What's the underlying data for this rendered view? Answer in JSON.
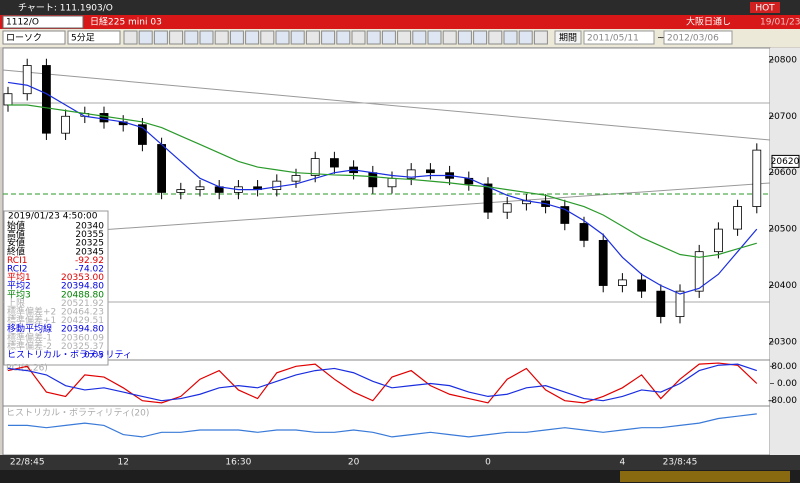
{
  "window": {
    "title": "チャート: 111.1903/O",
    "hot": "HOT"
  },
  "symbol_bar": {
    "code": "1112/O",
    "name": "日経225 mini 03",
    "exchange": "大阪日通し",
    "date": "19/01/23"
  },
  "toolbar": {
    "chart_type": "ローソク",
    "interval": "5分足",
    "period_label": "期間",
    "start": "2011/05/11",
    "end": "2012/03/06"
  },
  "info_panel": {
    "datetime": "2019/01/23 4:50:00",
    "rows": [
      {
        "label": "始値",
        "value": "20340",
        "color": "#000000"
      },
      {
        "label": "高値",
        "value": "20355",
        "color": "#000000"
      },
      {
        "label": "安値",
        "value": "20325",
        "color": "#000000"
      },
      {
        "label": "終値",
        "value": "20345",
        "color": "#000000"
      },
      {
        "label": "RCI1",
        "value": "-92.92",
        "color": "#e00000"
      },
      {
        "label": "RCI2",
        "value": "-74.02",
        "color": "#0000e0"
      },
      {
        "label": "平均1",
        "value": "20353.00",
        "color": "#e00000"
      },
      {
        "label": "平均2",
        "value": "20394.80",
        "color": "#0000e0"
      },
      {
        "label": "平均3",
        "value": "20488.80",
        "color": "#008000"
      },
      {
        "label": "上限",
        "value": "20521.92",
        "color": "#b0b0b0"
      },
      {
        "label": "標準偏差+2",
        "value": "20464.23",
        "color": "#b0b0b0"
      },
      {
        "label": "標準偏差+1",
        "value": "20429.51",
        "color": "#b0b0b0"
      },
      {
        "label": "移動平均線",
        "value": "20394.80",
        "color": "#0000e0"
      },
      {
        "label": "標準偏差-1",
        "value": "20360.09",
        "color": "#b0b0b0"
      },
      {
        "label": "標準偏差-2",
        "value": "20325.37",
        "color": "#b0b0b0"
      },
      {
        "label": "ヒストリカル・ボラティリティ",
        "value": "0.05",
        "color": "#0000e0"
      }
    ]
  },
  "chart_data": [
    {
      "type": "candlestick",
      "last_price": 20620,
      "categories": [
        null,
        "22/8:45",
        null,
        null,
        null,
        null,
        "12",
        null,
        null,
        null,
        null,
        null,
        "16:30",
        null,
        null,
        null,
        null,
        null,
        "20",
        null,
        null,
        null,
        null,
        null,
        null,
        "0",
        null,
        null,
        null,
        null,
        null,
        null,
        "4",
        null,
        null,
        "23/8:45",
        null,
        null,
        null,
        null
      ],
      "open": [
        20720,
        20740,
        20790,
        20670,
        20700,
        20705,
        20690,
        20685,
        20650,
        20565,
        20570,
        20575,
        20565,
        20575,
        20570,
        20585,
        20595,
        20625,
        20610,
        20600,
        20575,
        20590,
        20605,
        20600,
        20590,
        20580,
        20530,
        20545,
        20550,
        20540,
        20510,
        20480,
        20400,
        20410,
        20390,
        20345,
        20390,
        20460,
        20500,
        20540
      ],
      "high": [
        20752,
        20802,
        20802,
        20712,
        20717,
        20717,
        20702,
        20697,
        20662,
        20582,
        20587,
        20587,
        20587,
        20587,
        20597,
        20607,
        20637,
        20637,
        20622,
        20612,
        20602,
        20617,
        20617,
        20612,
        20602,
        20592,
        20557,
        20562,
        20562,
        20552,
        20522,
        20492,
        20422,
        20422,
        20402,
        20402,
        20472,
        20512,
        20552,
        20652
      ],
      "low": [
        20708,
        20728,
        20658,
        20658,
        20688,
        20678,
        20673,
        20638,
        20553,
        20553,
        20558,
        20553,
        20553,
        20558,
        20558,
        20573,
        20583,
        20598,
        20588,
        20563,
        20563,
        20578,
        20588,
        20578,
        20568,
        20518,
        20518,
        20533,
        20528,
        20498,
        20468,
        20388,
        20388,
        20378,
        20333,
        20333,
        20378,
        20448,
        20488,
        20528
      ],
      "close": [
        20740,
        20790,
        20670,
        20700,
        20705,
        20690,
        20685,
        20650,
        20565,
        20570,
        20575,
        20565,
        20575,
        20570,
        20585,
        20595,
        20625,
        20610,
        20600,
        20575,
        20590,
        20605,
        20600,
        20590,
        20580,
        20530,
        20545,
        20550,
        20540,
        20510,
        20480,
        20400,
        20410,
        20390,
        20345,
        20390,
        20460,
        20500,
        20540,
        20640
      ],
      "series": [
        {
          "name": "平均2",
          "color": "#1a2ee0",
          "values": [
            20760,
            20755,
            20740,
            20720,
            20700,
            20695,
            20690,
            20680,
            20650,
            20620,
            20590,
            20575,
            20570,
            20570,
            20575,
            20580,
            20590,
            20600,
            20605,
            20600,
            20595,
            20592,
            20595,
            20595,
            20590,
            20575,
            20560,
            20550,
            20545,
            20535,
            20515,
            20490,
            20450,
            20420,
            20400,
            20385,
            20395,
            20420,
            20460,
            20500
          ]
        },
        {
          "name": "平均3",
          "color": "#2a9a2a",
          "values": [
            20720,
            20720,
            20715,
            20710,
            20705,
            20700,
            20695,
            20690,
            20680,
            20665,
            20650,
            20635,
            20620,
            20610,
            20605,
            20600,
            20598,
            20596,
            20595,
            20593,
            20590,
            20588,
            20585,
            20582,
            20578,
            20575,
            20570,
            20565,
            20560,
            20550,
            20540,
            20525,
            20505,
            20485,
            20470,
            20455,
            20450,
            20455,
            20465,
            20475
          ]
        }
      ],
      "ylim": [
        20268,
        20821
      ],
      "yticks": [
        20300,
        20400,
        20500,
        20600,
        20700,
        20800
      ]
    },
    {
      "type": "line",
      "title": "RCI(9,26)",
      "series": [
        {
          "name": "RCI1",
          "color": "#e00000",
          "values": [
            60,
            80,
            -40,
            -60,
            40,
            30,
            -20,
            -80,
            -90,
            -60,
            20,
            60,
            -30,
            -70,
            50,
            80,
            90,
            20,
            -40,
            -80,
            30,
            60,
            -10,
            -50,
            -70,
            -90,
            20,
            70,
            -30,
            -80,
            -90,
            -60,
            -20,
            40,
            -70,
            20,
            90,
            95,
            85,
            0
          ]
        },
        {
          "name": "RCI2",
          "color": "#1a2ee0",
          "values": [
            70,
            60,
            40,
            -10,
            -30,
            -20,
            -40,
            -60,
            -80,
            -70,
            -50,
            -20,
            -10,
            -20,
            10,
            40,
            60,
            70,
            50,
            10,
            -20,
            -10,
            0,
            -10,
            -40,
            -60,
            -50,
            -20,
            -10,
            -40,
            -70,
            -80,
            -60,
            -30,
            -40,
            0,
            60,
            85,
            90,
            60
          ]
        }
      ],
      "ylim": [
        -100,
        100
      ],
      "yticks": [
        {
          "value": 80,
          "label": "80.00"
        },
        {
          "value": 0,
          "label": "0.00"
        },
        {
          "value": -80,
          "label": "-80.00"
        }
      ]
    },
    {
      "type": "line",
      "title": "ヒストリカル・ボラティリティ(20)",
      "series": [
        {
          "name": "ヒストリカル・ボラティリティ",
          "color": "#3a7ad8",
          "values": [
            0.12,
            0.12,
            0.11,
            0.12,
            0.13,
            0.12,
            0.08,
            0.07,
            0.09,
            0.09,
            0.1,
            0.1,
            0.1,
            0.09,
            0.1,
            0.1,
            0.09,
            0.09,
            0.1,
            0.09,
            0.07,
            0.08,
            0.09,
            0.08,
            0.07,
            0.08,
            0.09,
            0.09,
            0.1,
            0.11,
            0.1,
            0.09,
            0.1,
            0.11,
            0.11,
            0.12,
            0.13,
            0.15,
            0.16,
            0.17
          ]
        }
      ],
      "ylim": [
        0,
        0.2
      ]
    }
  ]
}
